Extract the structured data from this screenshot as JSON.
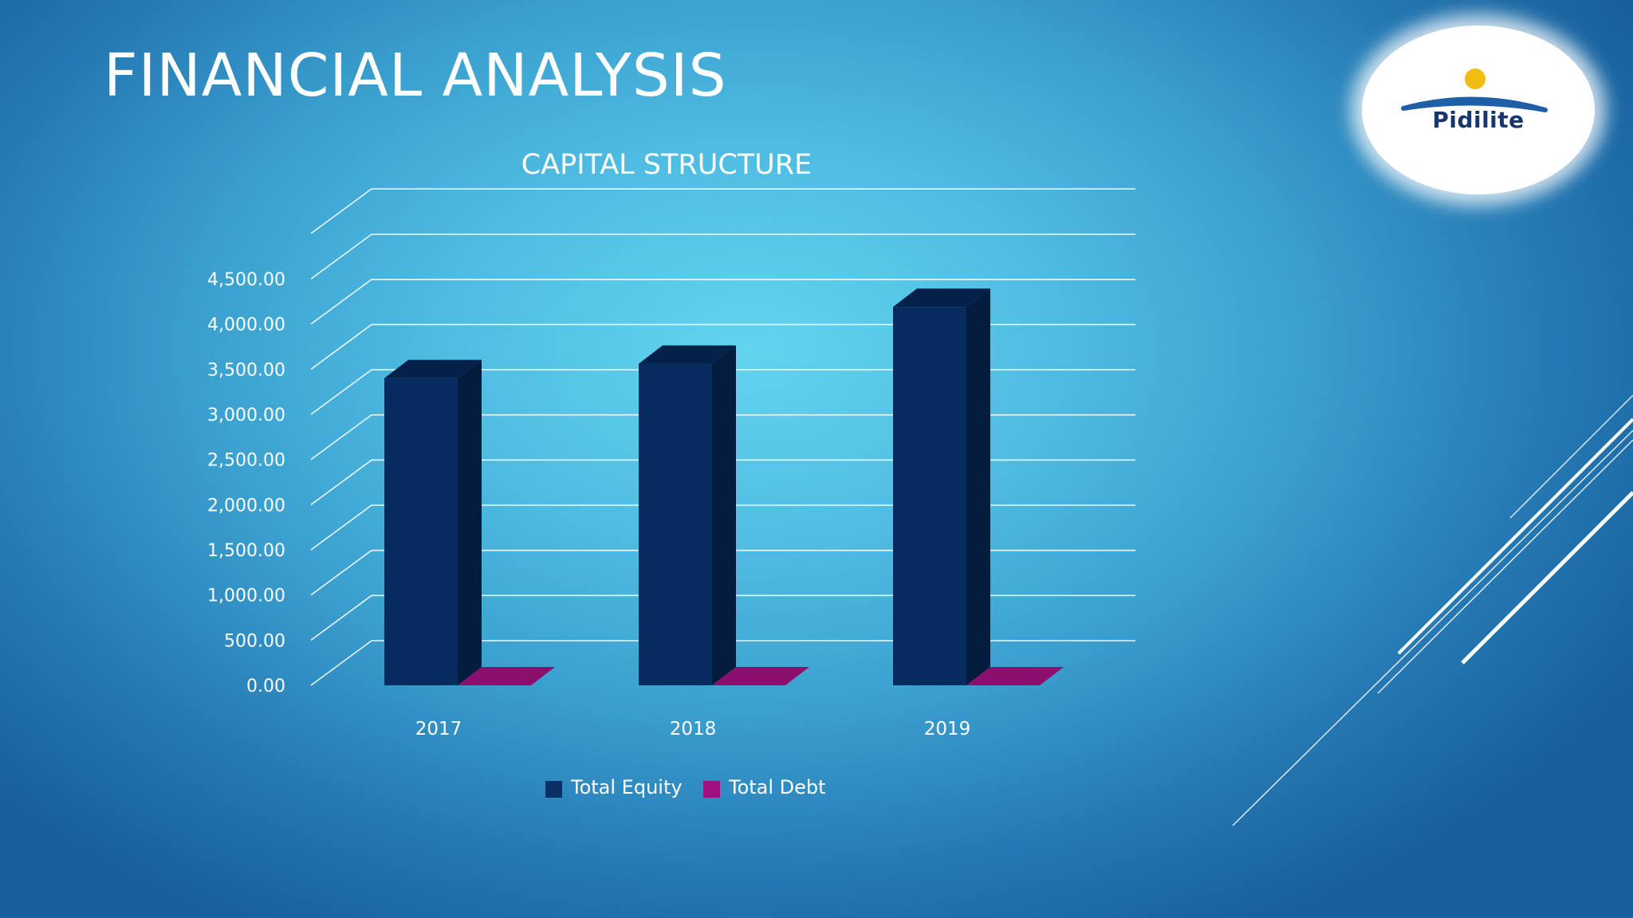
{
  "slide": {
    "title": "FINANCIAL ANALYSIS"
  },
  "logo": {
    "text": "Pidilite"
  },
  "chart_data": {
    "type": "bar",
    "title": "CAPITAL STRUCTURE",
    "categories": [
      "2017",
      "2018",
      "2019"
    ],
    "series": [
      {
        "name": "Total Equity",
        "values": [
          3400,
          3560,
          4190
        ],
        "color": "#062b5e"
      },
      {
        "name": "Total Debt",
        "values": [
          0,
          0,
          0
        ],
        "color": "#8b0f6c"
      }
    ],
    "ylim": [
      0,
      4500
    ],
    "yticks": [
      "0.00",
      "500.00",
      "1,000.00",
      "1,500.00",
      "2,000.00",
      "2,500.00",
      "3,000.00",
      "3,500.00",
      "4,000.00",
      "4,500.00"
    ],
    "grid": true,
    "legend": "bottom",
    "style": "3d-column"
  }
}
